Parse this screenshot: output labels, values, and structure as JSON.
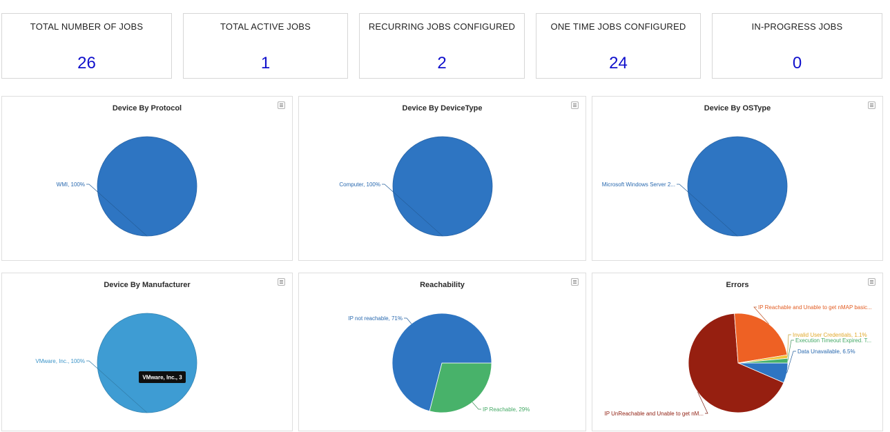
{
  "stats": [
    {
      "title": "TOTAL NUMBER OF JOBS",
      "value": "26"
    },
    {
      "title": "TOTAL ACTIVE JOBS",
      "value": "1"
    },
    {
      "title": "RECURRING JOBS CONFIGURED",
      "value": "2"
    },
    {
      "title": "ONE TIME JOBS CONFIGURED",
      "value": "24"
    },
    {
      "title": "IN-PROGRESS JOBS",
      "value": "0"
    }
  ],
  "colors": {
    "value_text": "#1010cc",
    "pie_blue": "#2e75c2",
    "pie_light_blue": "#3e9cd3",
    "pie_green": "#48b26a",
    "pie_orange": "#ee6124",
    "pie_yellow": "#f0c43a",
    "pie_dark_red": "#961f10"
  },
  "chart_data": [
    {
      "type": "pie",
      "title": "Device By Protocol",
      "slices": [
        {
          "label": "WMI, 100%",
          "value": 100,
          "color": "#2e75c2"
        }
      ]
    },
    {
      "type": "pie",
      "title": "Device By DeviceType",
      "slices": [
        {
          "label": "Computer, 100%",
          "value": 100,
          "color": "#2e75c2"
        }
      ]
    },
    {
      "type": "pie",
      "title": "Device By OSType",
      "slices": [
        {
          "label": "Microsoft Windows Server 2...",
          "value": 100,
          "color": "#2e75c2"
        }
      ]
    },
    {
      "type": "pie",
      "title": "Device By Manufacturer",
      "slices": [
        {
          "label": "VMware, Inc., 100%",
          "value": 100,
          "color": "#3e9cd3"
        }
      ],
      "tooltip": "VMware, Inc., 3"
    },
    {
      "type": "pie",
      "title": "Reachability",
      "slices": [
        {
          "label": "IP not reachable, 71%",
          "value": 71,
          "color": "#2e75c2"
        },
        {
          "label": "IP Reachable, 29%",
          "value": 29,
          "color": "#48b26a"
        }
      ]
    },
    {
      "type": "pie",
      "title": "Errors",
      "slices": [
        {
          "label": "Data Unavailable, 6.5%",
          "value": 6.5,
          "color": "#2e75c2"
        },
        {
          "label": "IP UnReachable and Unable to get nM...",
          "value": 67.3,
          "color": "#961f10"
        },
        {
          "label": "IP Reachable and Unable to get nMAP basic...",
          "value": 23.6,
          "color": "#ee6124"
        },
        {
          "label": "Invalid User Credentials, 1.1%",
          "value": 1.1,
          "color": "#f0c43a"
        },
        {
          "label": "Execution Timeout Expired. T...",
          "value": 1.5,
          "color": "#48b26a"
        }
      ]
    }
  ]
}
